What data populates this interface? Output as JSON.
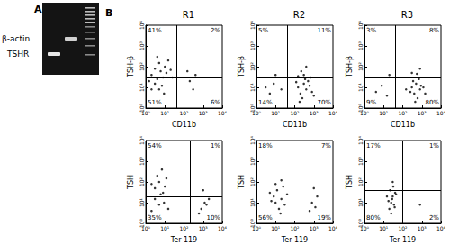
{
  "figure": {
    "panel_a": {
      "letter": "A",
      "labels": [
        "β-actin",
        "TSHR"
      ]
    },
    "panel_b": {
      "letter": "B"
    }
  },
  "chart_data": [
    {
      "type": "scatter",
      "title": "R1",
      "x_label": "CD11b",
      "y_label": "TSH-β",
      "log": true,
      "grid": false,
      "color": "#000000",
      "xlim": [
        1,
        10000
      ],
      "ylim": [
        1,
        10000
      ],
      "xticks": [
        {
          "value": 1,
          "label": "10⁰"
        },
        {
          "value": 10,
          "label": "10¹"
        },
        {
          "value": 100,
          "label": "10²"
        },
        {
          "value": 1000,
          "label": "10³"
        },
        {
          "value": 10000,
          "label": "10⁴"
        }
      ],
      "yticks": [
        {
          "value": 1,
          "label": "10⁰"
        },
        {
          "value": 10,
          "label": "10¹"
        },
        {
          "value": 100,
          "label": "10²"
        },
        {
          "value": 1000,
          "label": "10³"
        },
        {
          "value": 10000,
          "label": "10⁴"
        }
      ],
      "gate": {
        "x": 40,
        "y": 30
      },
      "quadrant_labels": {
        "upper_left": "41%",
        "upper_right": "2%",
        "lower_left": "51%",
        "lower_right": "6%"
      },
      "points": [
        [
          2,
          40
        ],
        [
          3,
          80
        ],
        [
          4,
          25
        ],
        [
          5,
          150
        ],
        [
          6,
          60
        ],
        [
          8,
          30
        ],
        [
          10,
          100
        ],
        [
          3,
          15
        ],
        [
          2,
          8
        ],
        [
          12,
          50
        ],
        [
          15,
          200
        ],
        [
          7,
          12
        ],
        [
          4,
          300
        ],
        [
          20,
          70
        ],
        [
          1.5,
          20
        ],
        [
          25,
          30
        ],
        [
          9,
          5
        ],
        [
          5,
          8
        ],
        [
          200,
          20
        ],
        [
          300,
          8
        ],
        [
          150,
          60
        ],
        [
          400,
          40
        ]
      ]
    },
    {
      "type": "scatter",
      "title": "R2",
      "x_label": "CD11b",
      "y_label": "TSH-β",
      "log": true,
      "grid": false,
      "color": "#000000",
      "xlim": [
        1,
        10000
      ],
      "ylim": [
        1,
        10000
      ],
      "xticks": [
        {
          "value": 1,
          "label": "10⁰"
        },
        {
          "value": 10,
          "label": "10¹"
        },
        {
          "value": 100,
          "label": "10²"
        },
        {
          "value": 1000,
          "label": "10³"
        },
        {
          "value": 10000,
          "label": "10⁴"
        }
      ],
      "yticks": [
        {
          "value": 1,
          "label": "10⁰"
        },
        {
          "value": 10,
          "label": "10¹"
        },
        {
          "value": 100,
          "label": "10²"
        },
        {
          "value": 1000,
          "label": "10³"
        },
        {
          "value": 10000,
          "label": "10⁴"
        }
      ],
      "gate": {
        "x": 40,
        "y": 30
      },
      "quadrant_labels": {
        "upper_left": "5%",
        "upper_right": "11%",
        "lower_left": "14%",
        "lower_right": "70%"
      },
      "points": [
        [
          150,
          10
        ],
        [
          200,
          5
        ],
        [
          300,
          15
        ],
        [
          250,
          3
        ],
        [
          400,
          8
        ],
        [
          500,
          20
        ],
        [
          350,
          25
        ],
        [
          180,
          2
        ],
        [
          600,
          12
        ],
        [
          120,
          18
        ],
        [
          800,
          6
        ],
        [
          220,
          60
        ],
        [
          400,
          100
        ],
        [
          300,
          40
        ],
        [
          5,
          5
        ],
        [
          8,
          15
        ],
        [
          3,
          10
        ],
        [
          10,
          40
        ],
        [
          20,
          8
        ],
        [
          1000,
          4
        ],
        [
          700,
          30
        ],
        [
          150,
          35
        ]
      ]
    },
    {
      "type": "scatter",
      "title": "R3",
      "x_label": "CD11b",
      "y_label": "TSH-β",
      "log": true,
      "grid": false,
      "color": "#000000",
      "xlim": [
        1,
        10000
      ],
      "ylim": [
        1,
        10000
      ],
      "xticks": [
        {
          "value": 1,
          "label": "10⁰"
        },
        {
          "value": 10,
          "label": "10¹"
        },
        {
          "value": 100,
          "label": "10²"
        },
        {
          "value": 1000,
          "label": "10³"
        },
        {
          "value": 10000,
          "label": "10⁴"
        }
      ],
      "yticks": [
        {
          "value": 1,
          "label": "10⁰"
        },
        {
          "value": 10,
          "label": "10¹"
        },
        {
          "value": 100,
          "label": "10²"
        },
        {
          "value": 1000,
          "label": "10³"
        },
        {
          "value": 10000,
          "label": "10⁴"
        }
      ],
      "gate": {
        "x": 40,
        "y": 30
      },
      "quadrant_labels": {
        "upper_left": "3%",
        "upper_right": "8%",
        "lower_left": "9%",
        "lower_right": "80%"
      },
      "points": [
        [
          300,
          10
        ],
        [
          400,
          5
        ],
        [
          500,
          15
        ],
        [
          600,
          3
        ],
        [
          800,
          8
        ],
        [
          350,
          20
        ],
        [
          700,
          25
        ],
        [
          450,
          2
        ],
        [
          900,
          12
        ],
        [
          250,
          6
        ],
        [
          1200,
          10
        ],
        [
          550,
          45
        ],
        [
          800,
          80
        ],
        [
          300,
          50
        ],
        [
          4,
          6
        ],
        [
          8,
          12
        ],
        [
          15,
          4
        ],
        [
          20,
          40
        ],
        [
          150,
          8
        ],
        [
          1500,
          5
        ]
      ]
    },
    {
      "type": "scatter",
      "x_label": "Ter-119",
      "y_label": "TSH",
      "log": true,
      "grid": false,
      "color": "#000000",
      "xlim": [
        1,
        10000
      ],
      "ylim": [
        1,
        10000
      ],
      "xticks": [
        {
          "value": 1,
          "label": "10⁰"
        },
        {
          "value": 10,
          "label": "10¹"
        },
        {
          "value": 100,
          "label": "10²"
        },
        {
          "value": 1000,
          "label": "10³"
        },
        {
          "value": 10000,
          "label": "10⁴"
        }
      ],
      "yticks": [
        {
          "value": 1,
          "label": "10⁰"
        },
        {
          "value": 10,
          "label": "10¹"
        },
        {
          "value": 100,
          "label": "10²"
        },
        {
          "value": 1000,
          "label": "10³"
        },
        {
          "value": 10000,
          "label": "10⁴"
        }
      ],
      "gate": {
        "x": 200,
        "y": 20
      },
      "quadrant_labels": {
        "upper_left": "54%",
        "upper_right": "1%",
        "lower_left": "35%",
        "lower_right": "10%"
      },
      "points": [
        [
          3,
          50
        ],
        [
          5,
          100
        ],
        [
          8,
          30
        ],
        [
          4,
          200
        ],
        [
          10,
          60
        ],
        [
          6,
          25
        ],
        [
          2,
          80
        ],
        [
          12,
          150
        ],
        [
          7,
          400
        ],
        [
          3,
          15
        ],
        [
          5,
          8
        ],
        [
          9,
          10
        ],
        [
          15,
          5
        ],
        [
          2,
          4
        ],
        [
          800,
          5
        ],
        [
          1200,
          10
        ],
        [
          600,
          3
        ],
        [
          1500,
          8
        ],
        [
          2000,
          15
        ],
        [
          1000,
          40
        ]
      ]
    },
    {
      "type": "scatter",
      "x_label": "Ter-119",
      "y_label": "TSH",
      "log": true,
      "grid": false,
      "color": "#000000",
      "xlim": [
        1,
        10000
      ],
      "ylim": [
        1,
        10000
      ],
      "xticks": [
        {
          "value": 1,
          "label": "10⁰"
        },
        {
          "value": 10,
          "label": "10¹"
        },
        {
          "value": 100,
          "label": "10²"
        },
        {
          "value": 1000,
          "label": "10³"
        },
        {
          "value": 10000,
          "label": "10⁴"
        }
      ],
      "yticks": [
        {
          "value": 1,
          "label": "10⁰"
        },
        {
          "value": 10,
          "label": "10¹"
        },
        {
          "value": 100,
          "label": "10²"
        },
        {
          "value": 1000,
          "label": "10³"
        },
        {
          "value": 10000,
          "label": "10⁴"
        }
      ],
      "gate": {
        "x": 200,
        "y": 25
      },
      "quadrant_labels": {
        "upper_left": "18%",
        "upper_right": "7%",
        "lower_left": "56%",
        "lower_right": "19%"
      },
      "points": [
        [
          10,
          10
        ],
        [
          15,
          5
        ],
        [
          20,
          15
        ],
        [
          8,
          20
        ],
        [
          30,
          8
        ],
        [
          12,
          40
        ],
        [
          25,
          60
        ],
        [
          6,
          12
        ],
        [
          40,
          25
        ],
        [
          18,
          3
        ],
        [
          800,
          10
        ],
        [
          1200,
          6
        ],
        [
          1500,
          20
        ],
        [
          600,
          4
        ],
        [
          1000,
          50
        ],
        [
          10,
          80
        ],
        [
          20,
          120
        ],
        [
          5,
          30
        ]
      ]
    },
    {
      "type": "scatter",
      "x_label": "Ter-119",
      "y_label": "TSH",
      "log": true,
      "grid": false,
      "color": "#000000",
      "xlim": [
        1,
        10000
      ],
      "ylim": [
        1,
        10000
      ],
      "xticks": [
        {
          "value": 1,
          "label": "10⁰"
        },
        {
          "value": 10,
          "label": "10¹"
        },
        {
          "value": 100,
          "label": "10²"
        },
        {
          "value": 1000,
          "label": "10³"
        },
        {
          "value": 10000,
          "label": "10⁴"
        }
      ],
      "yticks": [
        {
          "value": 1,
          "label": "10⁰"
        },
        {
          "value": 10,
          "label": "10¹"
        },
        {
          "value": 100,
          "label": "10²"
        },
        {
          "value": 1000,
          "label": "10³"
        },
        {
          "value": 10000,
          "label": "10⁴"
        }
      ],
      "gate": {
        "x": 100,
        "y": 40
      },
      "quadrant_labels": {
        "upper_left": "17%",
        "upper_right": "1%",
        "lower_left": "80%",
        "lower_right": "2%"
      },
      "points": [
        [
          20,
          5
        ],
        [
          25,
          10
        ],
        [
          30,
          20
        ],
        [
          22,
          40
        ],
        [
          35,
          8
        ],
        [
          28,
          15
        ],
        [
          40,
          30
        ],
        [
          18,
          12
        ],
        [
          32,
          60
        ],
        [
          25,
          3
        ],
        [
          45,
          25
        ],
        [
          30,
          100
        ],
        [
          38,
          6
        ],
        [
          15,
          20
        ],
        [
          800,
          8
        ]
      ]
    }
  ]
}
